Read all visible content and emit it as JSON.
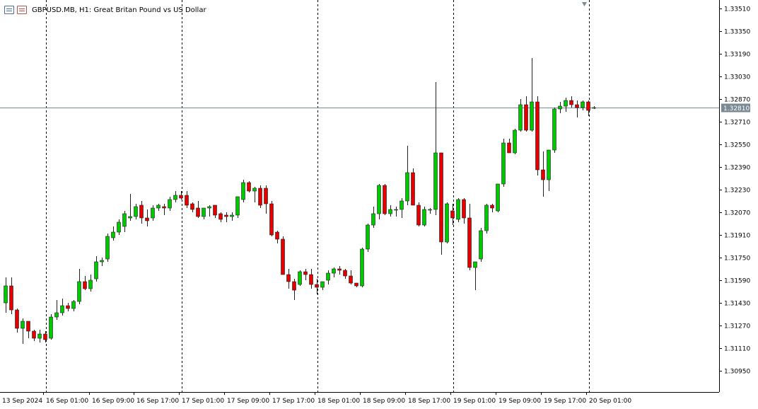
{
  "window": {
    "symbol": "GBPUSD.MB",
    "timeframe": "H1:",
    "description": "Great Britan Pound vs US Dollar",
    "title_text": "GBPUSD.MB, H1:  Great Britan Pound vs US Dollar",
    "icons": [
      "chart-properties-icon",
      "one-click-trading-icon"
    ]
  },
  "colors": {
    "background": "#ffffff",
    "bull": "#00c800",
    "bear": "#e00000",
    "wick": "#202020",
    "grid_separator": "#000000",
    "bid_line": "#7a8a94",
    "price_label_bg": "#7a8a94",
    "price_label_text": "#ffffff"
  },
  "price_axis": {
    "labels": [
      "1.33510",
      "1.33350",
      "1.33190",
      "1.33030",
      "1.32870",
      "1.32710",
      "1.32550",
      "1.32390",
      "1.32230",
      "1.32070",
      "1.31910",
      "1.31750",
      "1.31590",
      "1.31430",
      "1.31270",
      "1.31110",
      "1.30950"
    ],
    "current_price": "1.32810"
  },
  "time_axis": {
    "labels": [
      "13 Sep 2024",
      "16 Sep 01:00",
      "16 Sep 09:00",
      "16 Sep 17:00",
      "17 Sep 01:00",
      "17 Sep 09:00",
      "17 Sep 17:00",
      "18 Sep 01:00",
      "18 Sep 09:00",
      "18 Sep 17:00",
      "19 Sep 01:00",
      "19 Sep 09:00",
      "19 Sep 17:00",
      "20 Sep 01:00"
    ]
  },
  "chart_data": {
    "type": "candlestick",
    "symbol": "GBPUSD.MB",
    "timeframe": "H1",
    "ylim": [
      1.3085,
      1.3355
    ],
    "period_separators_after_candle": [
      7,
      31,
      55,
      79,
      103
    ],
    "current_price": 1.3281,
    "candles": [
      [
        1.3143,
        1.3161,
        1.3136,
        1.3155
      ],
      [
        1.3155,
        1.3161,
        1.3135,
        1.3138
      ],
      [
        1.3138,
        1.3139,
        1.3122,
        1.3125
      ],
      [
        1.3125,
        1.3132,
        1.3114,
        1.313
      ],
      [
        1.313,
        1.313,
        1.3118,
        1.3123
      ],
      [
        1.3123,
        1.3124,
        1.3116,
        1.3118
      ],
      [
        1.3118,
        1.3124,
        1.3115,
        1.3121
      ],
      [
        1.3121,
        1.3123,
        1.3115,
        1.3117
      ],
      [
        1.3118,
        1.3135,
        1.3117,
        1.3133
      ],
      [
        1.3133,
        1.3145,
        1.3131,
        1.3136
      ],
      [
        1.3136,
        1.3146,
        1.3134,
        1.3141
      ],
      [
        1.3141,
        1.3143,
        1.3137,
        1.3139
      ],
      [
        1.3139,
        1.3145,
        1.3137,
        1.3144
      ],
      [
        1.3144,
        1.3167,
        1.3142,
        1.3158
      ],
      [
        1.3158,
        1.3162,
        1.3152,
        1.3153
      ],
      [
        1.3153,
        1.3163,
        1.3151,
        1.3159
      ],
      [
        1.316,
        1.3176,
        1.3158,
        1.3172
      ],
      [
        1.3172,
        1.3175,
        1.3169,
        1.3173
      ],
      [
        1.3174,
        1.3192,
        1.3172,
        1.319
      ],
      [
        1.3189,
        1.3197,
        1.3187,
        1.3193
      ],
      [
        1.3193,
        1.3202,
        1.3191,
        1.32
      ],
      [
        1.3197,
        1.3208,
        1.3193,
        1.3206
      ],
      [
        1.3203,
        1.322,
        1.3201,
        1.3204
      ],
      [
        1.3204,
        1.3213,
        1.3202,
        1.3211
      ],
      [
        1.3212,
        1.3215,
        1.3199,
        1.3203
      ],
      [
        1.3203,
        1.3209,
        1.3197,
        1.3201
      ],
      [
        1.3203,
        1.3212,
        1.3201,
        1.321
      ],
      [
        1.321,
        1.3213,
        1.3208,
        1.3212
      ],
      [
        1.3211,
        1.3213,
        1.3205,
        1.321
      ],
      [
        1.321,
        1.3218,
        1.3208,
        1.3216
      ],
      [
        1.3216,
        1.3222,
        1.3214,
        1.3219
      ],
      [
        1.3219,
        1.3222,
        1.3216,
        1.3217
      ],
      [
        1.3219,
        1.3222,
        1.321,
        1.3212
      ],
      [
        1.3213,
        1.3214,
        1.3207,
        1.3209
      ],
      [
        1.321,
        1.3215,
        1.3203,
        1.3204
      ],
      [
        1.3204,
        1.321,
        1.3202,
        1.321
      ],
      [
        1.321,
        1.3212,
        1.3204,
        1.3211
      ],
      [
        1.3212,
        1.3212,
        1.3203,
        1.3205
      ],
      [
        1.3206,
        1.3207,
        1.32,
        1.3202
      ],
      [
        1.3205,
        1.3207,
        1.32,
        1.3204
      ],
      [
        1.3204,
        1.3207,
        1.3201,
        1.3205
      ],
      [
        1.3205,
        1.3216,
        1.3203,
        1.3218
      ],
      [
        1.3216,
        1.323,
        1.3214,
        1.3228
      ],
      [
        1.3228,
        1.3229,
        1.3221,
        1.3222
      ],
      [
        1.3222,
        1.3225,
        1.3214,
        1.3224
      ],
      [
        1.3224,
        1.3226,
        1.321,
        1.3212
      ],
      [
        1.3224,
        1.3226,
        1.3206,
        1.3213
      ],
      [
        1.3213,
        1.3215,
        1.319,
        1.3191
      ],
      [
        1.3193,
        1.3194,
        1.3185,
        1.3188
      ],
      [
        1.3188,
        1.319,
        1.3164,
        1.3163
      ],
      [
        1.3163,
        1.3167,
        1.3153,
        1.3158
      ],
      [
        1.3158,
        1.316,
        1.3145,
        1.3152
      ],
      [
        1.3156,
        1.3166,
        1.3155,
        1.3165
      ],
      [
        1.3165,
        1.3167,
        1.3159,
        1.3163
      ],
      [
        1.3163,
        1.3167,
        1.3153,
        1.3156
      ],
      [
        1.3156,
        1.316,
        1.3149,
        1.3154
      ],
      [
        1.3154,
        1.3158,
        1.3152,
        1.3158
      ],
      [
        1.3159,
        1.3166,
        1.3156,
        1.3164
      ],
      [
        1.3164,
        1.3168,
        1.3161,
        1.3167
      ],
      [
        1.3167,
        1.3169,
        1.3163,
        1.3166
      ],
      [
        1.3166,
        1.3167,
        1.316,
        1.3162
      ],
      [
        1.3162,
        1.3166,
        1.3156,
        1.3157
      ],
      [
        1.3157,
        1.3157,
        1.3154,
        1.3155
      ],
      [
        1.3155,
        1.3182,
        1.3154,
        1.3181
      ],
      [
        1.3181,
        1.3199,
        1.3179,
        1.3198
      ],
      [
        1.3198,
        1.3211,
        1.3196,
        1.3206
      ],
      [
        1.3206,
        1.3227,
        1.3202,
        1.3226
      ],
      [
        1.3226,
        1.3227,
        1.3205,
        1.3206
      ],
      [
        1.3206,
        1.3212,
        1.3204,
        1.3209
      ],
      [
        1.3209,
        1.3211,
        1.3204,
        1.3209
      ],
      [
        1.3209,
        1.3217,
        1.3203,
        1.3215
      ],
      [
        1.3215,
        1.3254,
        1.3212,
        1.3235
      ],
      [
        1.3235,
        1.3238,
        1.3213,
        1.3212
      ],
      [
        1.3212,
        1.3214,
        1.3197,
        1.3198
      ],
      [
        1.3198,
        1.3211,
        1.3197,
        1.3209
      ],
      [
        1.3209,
        1.321,
        1.3206,
        1.3209
      ],
      [
        1.3209,
        1.3299,
        1.3205,
        1.3249
      ],
      [
        1.3249,
        1.3249,
        1.3177,
        1.3186
      ],
      [
        1.3186,
        1.3214,
        1.3185,
        1.3213
      ],
      [
        1.3208,
        1.3213,
        1.3198,
        1.3203
      ],
      [
        1.3202,
        1.3217,
        1.32,
        1.3216
      ],
      [
        1.3216,
        1.3217,
        1.3199,
        1.3203
      ],
      [
        1.3203,
        1.3213,
        1.3166,
        1.3168
      ],
      [
        1.3168,
        1.317,
        1.3152,
        1.3172
      ],
      [
        1.3174,
        1.3196,
        1.3172,
        1.3194
      ],
      [
        1.3194,
        1.3213,
        1.3192,
        1.3212
      ],
      [
        1.3212,
        1.3213,
        1.3207,
        1.321
      ],
      [
        1.3208,
        1.3227,
        1.3207,
        1.3227
      ],
      [
        1.3227,
        1.3259,
        1.3225,
        1.3256
      ],
      [
        1.3256,
        1.3259,
        1.325,
        1.3249
      ],
      [
        1.3249,
        1.3266,
        1.3248,
        1.3265
      ],
      [
        1.3265,
        1.3287,
        1.3264,
        1.3283
      ],
      [
        1.3283,
        1.3289,
        1.3264,
        1.3265
      ],
      [
        1.3265,
        1.3316,
        1.3264,
        1.3285
      ],
      [
        1.3285,
        1.3289,
        1.3233,
        1.3237
      ],
      [
        1.3237,
        1.325,
        1.3218,
        1.323
      ],
      [
        1.323,
        1.325,
        1.3222,
        1.3251
      ],
      [
        1.3251,
        1.3281,
        1.3249,
        1.328
      ],
      [
        1.328,
        1.3285,
        1.3277,
        1.3282
      ],
      [
        1.3282,
        1.3288,
        1.3278,
        1.3286
      ],
      [
        1.3286,
        1.3289,
        1.3281,
        1.3283
      ],
      [
        1.3283,
        1.3286,
        1.3274,
        1.3281
      ],
      [
        1.3281,
        1.3286,
        1.3279,
        1.3285
      ],
      [
        1.3285,
        1.3286,
        1.3275,
        1.3279
      ],
      [
        1.3281,
        1.3282,
        1.328,
        1.3281
      ]
    ],
    "x_tick_labels": [
      "13 Sep 2024",
      "16 Sep 01:00",
      "16 Sep 09:00",
      "16 Sep 17:00",
      "17 Sep 01:00",
      "17 Sep 09:00",
      "17 Sep 17:00",
      "18 Sep 01:00",
      "18 Sep 09:00",
      "18 Sep 17:00",
      "19 Sep 01:00",
      "19 Sep 09:00",
      "19 Sep 17:00",
      "20 Sep 01:00"
    ],
    "y_tick_labels": [
      "1.33510",
      "1.33350",
      "1.33190",
      "1.33030",
      "1.32870",
      "1.32710",
      "1.32550",
      "1.32390",
      "1.32230",
      "1.32070",
      "1.31910",
      "1.31750",
      "1.31590",
      "1.31430",
      "1.31270",
      "1.31110",
      "1.30950"
    ]
  }
}
